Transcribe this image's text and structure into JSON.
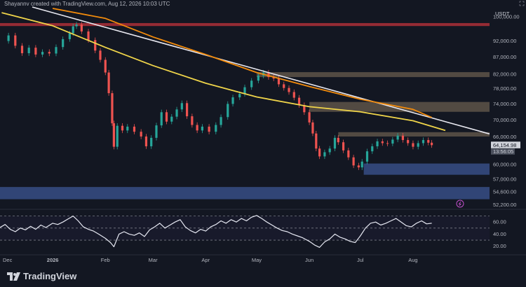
{
  "header": {
    "text": "Shayannv created with TradingView.com, Aug 12, 2026 10:03 UTC"
  },
  "price_axis": {
    "currency": "USDT",
    "current_price": "64,154.98",
    "countdown": "13:56:05"
  },
  "brand": {
    "name": "TradingView",
    "icon": "tradingview-logo-icon"
  },
  "colors": {
    "background": "#131722",
    "candle_up": "#26a69a",
    "candle_down": "#ef5350",
    "ma_yellow": "#f0d54a",
    "ma_orange": "#f28b0c",
    "trendline": "#e8e8f0",
    "rsi_line": "#e6e8f2",
    "supply_zone": "#a08a6a",
    "red_zone": "#c0333b",
    "demand_zone": "#3e5a9a"
  },
  "chart_data": [
    {
      "type": "candlestick",
      "title": "",
      "y_scale": "log",
      "ylim": [
        51500,
        103500
      ],
      "y_ticks": [
        "100,000.00",
        "92,000.00",
        "87,000.00",
        "82,000.00",
        "78,000.00",
        "74,000.00",
        "70,000.00",
        "66,000.00",
        "60,000.00",
        "57,000.00",
        "54,600.00",
        "52,200.00"
      ],
      "y_tick_values": [
        100000,
        92000,
        87000,
        82000,
        78000,
        74000,
        70000,
        66000,
        60000,
        57000,
        54600,
        52200
      ],
      "x_range": [
        "2025-12-01",
        "2026-09-15"
      ],
      "x_ticks": [
        "Dec",
        "2026",
        "Feb",
        "Mar",
        "Apr",
        "May",
        "Jun",
        "Jul",
        "Aug"
      ],
      "x_tick_dates": [
        "2025-12-01",
        "2026-01-01",
        "2026-02-01",
        "2026-03-01",
        "2026-04-01",
        "2026-05-01",
        "2026-06-01",
        "2026-07-01",
        "2026-08-01"
      ],
      "close_series": [
        [
          "2025-12-02",
          92000
        ],
        [
          "2025-12-06",
          93800
        ],
        [
          "2025-12-10",
          90500
        ],
        [
          "2025-12-14",
          88200
        ],
        [
          "2025-12-18",
          89900
        ],
        [
          "2025-12-22",
          87800
        ],
        [
          "2025-12-26",
          88600
        ],
        [
          "2025-12-30",
          88100
        ],
        [
          "2026-01-03",
          90100
        ],
        [
          "2026-01-07",
          92600
        ],
        [
          "2026-01-11",
          94500
        ],
        [
          "2026-01-13",
          96800
        ],
        [
          "2026-01-15",
          97400
        ],
        [
          "2026-01-18",
          95100
        ],
        [
          "2026-01-22",
          92300
        ],
        [
          "2026-01-26",
          89000
        ],
        [
          "2026-01-29",
          86200
        ],
        [
          "2026-02-01",
          82500
        ],
        [
          "2026-02-03",
          76800
        ],
        [
          "2026-02-05",
          69200
        ],
        [
          "2026-02-06",
          63800
        ],
        [
          "2026-02-08",
          68600
        ],
        [
          "2026-02-11",
          67500
        ],
        [
          "2026-02-14",
          68400
        ],
        [
          "2026-02-18",
          67200
        ],
        [
          "2026-02-22",
          66100
        ],
        [
          "2026-02-25",
          63900
        ],
        [
          "2026-02-28",
          65800
        ],
        [
          "2026-03-03",
          68700
        ],
        [
          "2026-03-06",
          71900
        ],
        [
          "2026-03-09",
          69600
        ],
        [
          "2026-03-12",
          70800
        ],
        [
          "2026-03-15",
          72600
        ],
        [
          "2026-03-18",
          74200
        ],
        [
          "2026-03-21",
          70900
        ],
        [
          "2026-03-24",
          68800
        ],
        [
          "2026-03-27",
          67500
        ],
        [
          "2026-03-30",
          68400
        ],
        [
          "2026-04-03",
          67200
        ],
        [
          "2026-04-07",
          68800
        ],
        [
          "2026-04-10",
          70700
        ],
        [
          "2026-04-14",
          74000
        ],
        [
          "2026-04-17",
          75700
        ],
        [
          "2026-04-21",
          76600
        ],
        [
          "2026-04-24",
          78400
        ],
        [
          "2026-04-28",
          80200
        ],
        [
          "2026-05-02",
          81600
        ],
        [
          "2026-05-05",
          82500
        ],
        [
          "2026-05-08",
          81200
        ],
        [
          "2026-05-11",
          80800
        ],
        [
          "2026-05-14",
          79200
        ],
        [
          "2026-05-17",
          78200
        ],
        [
          "2026-05-20",
          77100
        ],
        [
          "2026-05-23",
          75600
        ],
        [
          "2026-05-26",
          73700
        ],
        [
          "2026-05-29",
          71900
        ],
        [
          "2026-06-01",
          69400
        ],
        [
          "2026-06-03",
          66800
        ],
        [
          "2026-06-05",
          63400
        ],
        [
          "2026-06-07",
          61700
        ],
        [
          "2026-06-10",
          62600
        ],
        [
          "2026-06-13",
          63400
        ],
        [
          "2026-06-16",
          65800
        ],
        [
          "2026-06-18",
          64800
        ],
        [
          "2026-06-21",
          63000
        ],
        [
          "2026-06-24",
          61500
        ],
        [
          "2026-06-27",
          59800
        ],
        [
          "2026-06-30",
          59400
        ],
        [
          "2026-07-02",
          60600
        ],
        [
          "2026-07-05",
          62800
        ],
        [
          "2026-07-08",
          63900
        ],
        [
          "2026-07-11",
          65000
        ],
        [
          "2026-07-14",
          64600
        ],
        [
          "2026-07-17",
          64500
        ],
        [
          "2026-07-20",
          65400
        ],
        [
          "2026-07-23",
          66300
        ],
        [
          "2026-07-26",
          65300
        ],
        [
          "2026-07-29",
          64600
        ],
        [
          "2026-08-01",
          63800
        ],
        [
          "2026-08-04",
          64600
        ],
        [
          "2026-08-07",
          65300
        ],
        [
          "2026-08-10",
          64700
        ],
        [
          "2026-08-12",
          64155
        ]
      ],
      "moving_average_yellow": [
        [
          "2025-12-02",
          101500
        ],
        [
          "2026-01-01",
          97000
        ],
        [
          "2026-02-01",
          90000
        ],
        [
          "2026-03-01",
          84500
        ],
        [
          "2026-04-01",
          79500
        ],
        [
          "2026-05-01",
          75800
        ],
        [
          "2026-06-01",
          73300
        ],
        [
          "2026-07-01",
          72000
        ],
        [
          "2026-08-01",
          69800
        ],
        [
          "2026-08-20",
          67500
        ]
      ],
      "moving_average_orange": [
        [
          "2026-01-01",
          103000
        ],
        [
          "2026-02-01",
          99500
        ],
        [
          "2026-03-01",
          93300
        ],
        [
          "2026-04-01",
          87800
        ],
        [
          "2026-05-01",
          82500
        ],
        [
          "2026-06-01",
          78600
        ],
        [
          "2026-07-01",
          75200
        ],
        [
          "2026-08-01",
          72600
        ],
        [
          "2026-08-12",
          70600
        ]
      ],
      "trendline": [
        [
          "2025-12-20",
          103500
        ],
        [
          "2026-09-15",
          66700
        ]
      ],
      "zones": [
        {
          "kind": "supply",
          "from": "2025-12-01",
          "to": "2026-09-15",
          "low": 96900,
          "high": 97900
        },
        {
          "kind": "supply",
          "from": "2026-05-01",
          "to": "2026-09-15",
          "low": 81200,
          "high": 82600
        },
        {
          "kind": "supply",
          "from": "2026-06-01",
          "to": "2026-09-15",
          "low": 72000,
          "high": 74500
        },
        {
          "kind": "supply",
          "from": "2026-06-18",
          "to": "2026-09-15",
          "low": 66100,
          "high": 67100
        },
        {
          "kind": "demand",
          "from": "2026-07-03",
          "to": "2026-09-15",
          "low": 57900,
          "high": 60200
        },
        {
          "kind": "demand",
          "from": "2025-12-01",
          "to": "2026-09-15",
          "low": 53200,
          "high": 55500
        }
      ]
    },
    {
      "type": "line",
      "title": "",
      "ylim": [
        8,
        80
      ],
      "y_ticks": [
        "60.00",
        "40.00",
        "20.00"
      ],
      "y_tick_values": [
        60,
        40,
        20
      ],
      "levels": [
        70,
        50,
        30
      ],
      "series": [
        {
          "values": [
            [
              "2025-12-01",
              51
            ],
            [
              "2025-12-04",
              56
            ],
            [
              "2025-12-07",
              48
            ],
            [
              "2025-12-10",
              44
            ],
            [
              "2025-12-13",
              50
            ],
            [
              "2025-12-16",
              47
            ],
            [
              "2025-12-19",
              53
            ],
            [
              "2025-12-22",
              48
            ],
            [
              "2025-12-25",
              55
            ],
            [
              "2025-12-28",
              51
            ],
            [
              "2026-01-01",
              58
            ],
            [
              "2026-01-04",
              56
            ],
            [
              "2026-01-07",
              60
            ],
            [
              "2026-01-10",
              65
            ],
            [
              "2026-01-13",
              70
            ],
            [
              "2026-01-16",
              62
            ],
            [
              "2026-01-19",
              52
            ],
            [
              "2026-01-22",
              48
            ],
            [
              "2026-01-25",
              45
            ],
            [
              "2026-01-28",
              40
            ],
            [
              "2026-02-01",
              33
            ],
            [
              "2026-02-04",
              26
            ],
            [
              "2026-02-06",
              19
            ],
            [
              "2026-02-09",
              40
            ],
            [
              "2026-02-12",
              44
            ],
            [
              "2026-02-15",
              40
            ],
            [
              "2026-02-18",
              38
            ],
            [
              "2026-02-21",
              42
            ],
            [
              "2026-02-24",
              36
            ],
            [
              "2026-02-27",
              47
            ],
            [
              "2026-03-02",
              52
            ],
            [
              "2026-03-05",
              58
            ],
            [
              "2026-03-08",
              50
            ],
            [
              "2026-03-11",
              55
            ],
            [
              "2026-03-14",
              60
            ],
            [
              "2026-03-17",
              64
            ],
            [
              "2026-03-20",
              52
            ],
            [
              "2026-03-23",
              46
            ],
            [
              "2026-03-26",
              42
            ],
            [
              "2026-03-29",
              48
            ],
            [
              "2026-04-01",
              45
            ],
            [
              "2026-04-04",
              52
            ],
            [
              "2026-04-07",
              56
            ],
            [
              "2026-04-10",
              62
            ],
            [
              "2026-04-13",
              58
            ],
            [
              "2026-04-16",
              64
            ],
            [
              "2026-04-19",
              60
            ],
            [
              "2026-04-22",
              66
            ],
            [
              "2026-04-25",
              62
            ],
            [
              "2026-04-28",
              68
            ],
            [
              "2026-05-01",
              71
            ],
            [
              "2026-05-04",
              66
            ],
            [
              "2026-05-07",
              60
            ],
            [
              "2026-05-10",
              55
            ],
            [
              "2026-05-13",
              50
            ],
            [
              "2026-05-16",
              46
            ],
            [
              "2026-05-19",
              44
            ],
            [
              "2026-05-22",
              40
            ],
            [
              "2026-05-25",
              37
            ],
            [
              "2026-05-28",
              34
            ],
            [
              "2026-06-01",
              28
            ],
            [
              "2026-06-04",
              22
            ],
            [
              "2026-06-07",
              18
            ],
            [
              "2026-06-10",
              27
            ],
            [
              "2026-06-13",
              32
            ],
            [
              "2026-06-16",
              40
            ],
            [
              "2026-06-19",
              35
            ],
            [
              "2026-06-22",
              32
            ],
            [
              "2026-06-25",
              28
            ],
            [
              "2026-06-28",
              26
            ],
            [
              "2026-07-01",
              37
            ],
            [
              "2026-07-04",
              50
            ],
            [
              "2026-07-07",
              58
            ],
            [
              "2026-07-10",
              60
            ],
            [
              "2026-07-13",
              55
            ],
            [
              "2026-07-16",
              58
            ],
            [
              "2026-07-19",
              62
            ],
            [
              "2026-07-22",
              66
            ],
            [
              "2026-07-25",
              60
            ],
            [
              "2026-07-28",
              54
            ],
            [
              "2026-07-31",
              52
            ],
            [
              "2026-08-03",
              58
            ],
            [
              "2026-08-06",
              62
            ],
            [
              "2026-08-09",
              57
            ],
            [
              "2026-08-12",
              58
            ]
          ]
        }
      ]
    }
  ]
}
